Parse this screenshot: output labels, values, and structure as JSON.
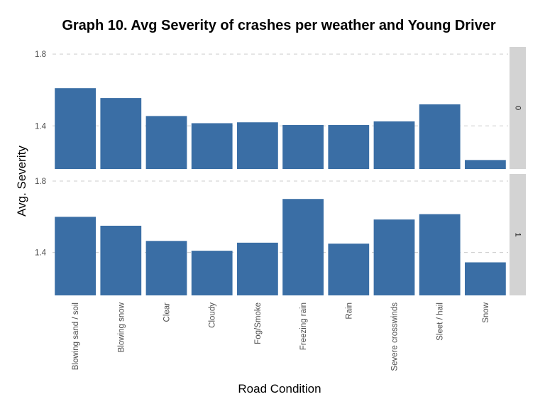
{
  "chart_data": {
    "type": "bar",
    "title": "Graph 10. Avg Severity of crashes per weather and Young Driver",
    "xlabel": "Road Condition",
    "ylabel": "Avg. Severity",
    "facet_variable": "Young Driver",
    "categories": [
      "Blowing sand / soil",
      "Blowing snow",
      "Clear",
      "Cloudy",
      "Fog/Smoke",
      "Freezing rain",
      "Rain",
      "Severe crosswinds",
      "Sleet / hail",
      "Snow"
    ],
    "panels": [
      {
        "label": "0",
        "values": [
          1.61,
          1.555,
          1.455,
          1.415,
          1.42,
          1.405,
          1.405,
          1.425,
          1.52,
          1.21
        ]
      },
      {
        "label": "1",
        "values": [
          1.6,
          1.55,
          1.465,
          1.41,
          1.455,
          1.7,
          1.45,
          1.585,
          1.615,
          1.345
        ]
      }
    ],
    "ylim": [
      1.16,
      1.84
    ],
    "yticks": [
      1.4,
      1.8
    ],
    "ytick_labels": [
      "1.4",
      "1.8"
    ],
    "grid": true,
    "bar_color": "#3a6ea5",
    "strip_color": "#d3d3d3",
    "gridline_color": "#cccccc"
  }
}
